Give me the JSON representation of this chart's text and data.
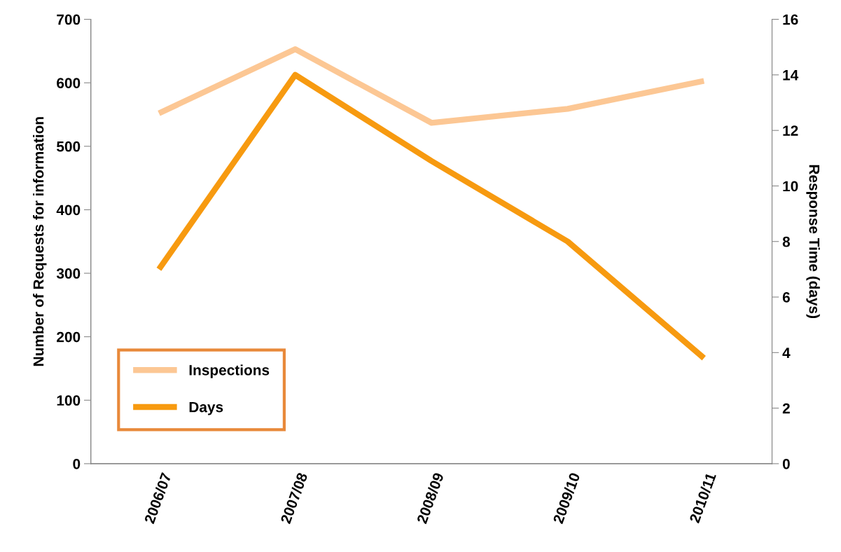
{
  "chart_data": {
    "type": "line",
    "ylabel": "Number of Requests for information",
    "y2label": "Response Time (days)",
    "categories": [
      "2006/07",
      "2007/08",
      "2008/09",
      "2009/10",
      "2010/11"
    ],
    "series": [
      {
        "name": "Inspections",
        "color": "#fcc794",
        "values": [
          552,
          653,
          537,
          559,
          603
        ]
      },
      {
        "name": "Days",
        "color": "#f79a10",
        "axis": "y2",
        "values": [
          7.0,
          14.0,
          10.9,
          8.0,
          3.8
        ]
      }
    ],
    "ylim": [
      0,
      700
    ],
    "yticks": [
      0,
      100,
      200,
      300,
      400,
      500,
      600,
      700
    ],
    "y2lim": [
      0,
      16
    ],
    "y2ticks": [
      0,
      2,
      4,
      6,
      8,
      10,
      12,
      14,
      16
    ],
    "legend": "bottom left",
    "grid": false,
    "marker": "none",
    "line_style": "solid"
  }
}
